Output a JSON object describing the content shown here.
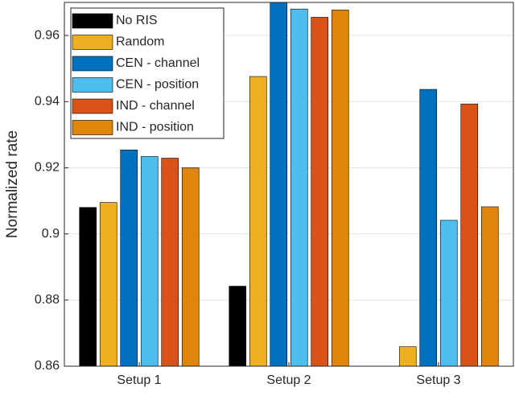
{
  "chart_data": {
    "type": "bar",
    "y_label": "Normalized rate",
    "categories": [
      "Setup 1",
      "Setup 2",
      "Setup 3"
    ],
    "series": [
      {
        "name": "No RIS",
        "color": "#000000",
        "values": [
          0.908,
          0.8842,
          0.86
        ]
      },
      {
        "name": "Random",
        "color": "#edb120",
        "values": [
          0.9095,
          0.9476,
          0.8659
        ]
      },
      {
        "name": "CEN - channel",
        "color": "#0072bd",
        "values": [
          0.9254,
          0.9704,
          0.9437
        ]
      },
      {
        "name": "CEN - position",
        "color": "#4dbeee",
        "values": [
          0.9234,
          0.968,
          0.9041
        ]
      },
      {
        "name": "IND - channel",
        "color": "#d95319",
        "values": [
          0.9229,
          0.9655,
          0.9393
        ]
      },
      {
        "name": "IND - position",
        "color": "#df8509",
        "values": [
          0.92,
          0.9677,
          0.9082
        ]
      }
    ],
    "ylim": [
      0.86,
      0.97
    ],
    "yticks": [
      0.86,
      0.88,
      0.9,
      0.92,
      0.94,
      0.96
    ],
    "grid": true,
    "legend": "top-left"
  }
}
